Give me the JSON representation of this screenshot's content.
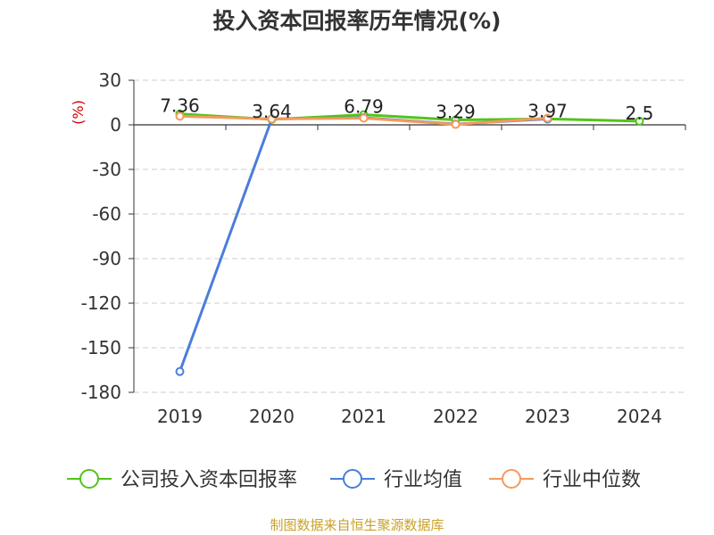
{
  "title": "投入资本回报率历年情况(%)",
  "source": "制图数据来自恒生聚源数据库",
  "colors": {
    "company": "#52c41a",
    "industry_avg": "#4a7ed9",
    "industry_median": "#f39a5c",
    "axis": "#333333",
    "grid": "#cccccc",
    "ylabel": "#cc0000"
  },
  "chart_data": {
    "type": "line",
    "title": "投入资本回报率历年情况(%)",
    "ylabel": "(%)",
    "xlabel": "",
    "categories": [
      "2019",
      "2020",
      "2021",
      "2022",
      "2023",
      "2024"
    ],
    "ylim": [
      -180,
      30
    ],
    "yticks": [
      30,
      0,
      -30,
      -60,
      -90,
      -120,
      -150,
      -180
    ],
    "grid": true,
    "legend_position": "bottom",
    "series": [
      {
        "name": "公司投入资本回报率",
        "values": [
          7.36,
          3.64,
          6.79,
          3.29,
          3.97,
          2.5
        ],
        "data_labels": [
          "7.36",
          "3.64",
          "6.79",
          "3.29",
          "3.97",
          "2.5"
        ]
      },
      {
        "name": "行业均值",
        "values": [
          -166,
          4.0,
          4.8,
          0.5,
          4.0,
          null
        ]
      },
      {
        "name": "行业中位数",
        "values": [
          5.8,
          4.0,
          4.5,
          0.3,
          4.5,
          null
        ]
      }
    ]
  }
}
